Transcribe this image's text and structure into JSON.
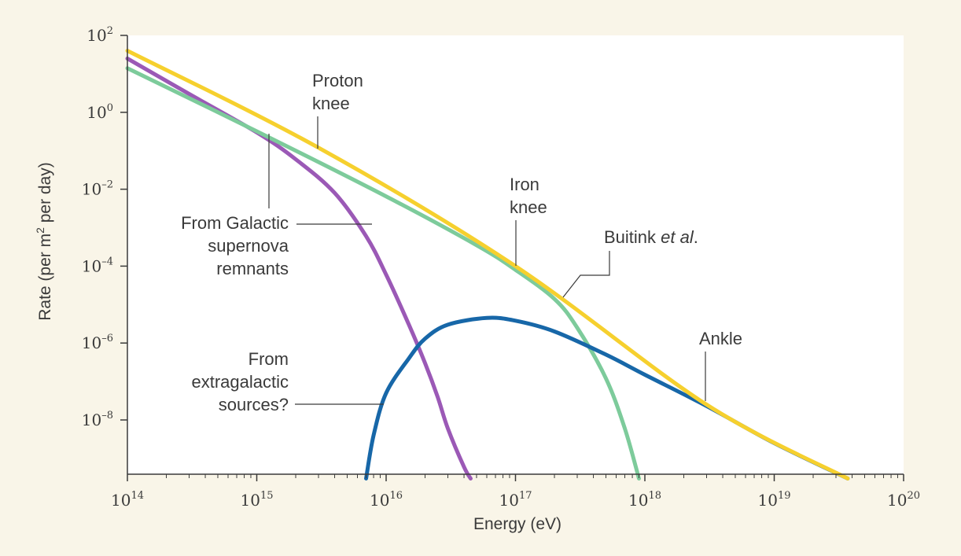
{
  "chart_data": {
    "type": "line",
    "xlabel": "Energy (eV)",
    "ylabel_parts": [
      "Rate (per m",
      "2",
      " per day)"
    ],
    "x_scale": "log",
    "y_scale": "log",
    "xlim": [
      100000000000000.0,
      1e+20
    ],
    "ylim": [
      3e-10,
      100
    ],
    "x_ticks": [
      {
        "value": 100000000000000.0,
        "base": "10",
        "exp": "14"
      },
      {
        "value": 1000000000000000.0,
        "base": "10",
        "exp": "15"
      },
      {
        "value": 1e+16,
        "base": "10",
        "exp": "16"
      },
      {
        "value": 1e+17,
        "base": "10",
        "exp": "17"
      },
      {
        "value": 1e+18,
        "base": "10",
        "exp": "18"
      },
      {
        "value": 1e+19,
        "base": "10",
        "exp": "19"
      },
      {
        "value": 1e+20,
        "base": "10",
        "exp": "20"
      }
    ],
    "y_ticks": [
      {
        "value": 100,
        "base": "10",
        "exp": "2"
      },
      {
        "value": 1,
        "base": "10",
        "exp": "0"
      },
      {
        "value": 0.01,
        "base": "10",
        "exp": "–2"
      },
      {
        "value": 0.0001,
        "base": "10",
        "exp": "–4"
      },
      {
        "value": 1e-06,
        "base": "10",
        "exp": "–6"
      },
      {
        "value": 1e-08,
        "base": "10",
        "exp": "–8"
      }
    ],
    "series": [
      {
        "key": "galactic",
        "color": "#9b59b6",
        "points": [
          [
            100000000000000.0,
            25
          ],
          [
            300000000000000.0,
            3
          ],
          [
            1000000000000000.0,
            0.3
          ],
          [
            2000000000000000.0,
            0.06
          ],
          [
            4000000000000000.0,
            0.008
          ],
          [
            7000000000000000.0,
            0.0006
          ],
          [
            1e+16,
            6e-05
          ],
          [
            1.5e+16,
            3e-06
          ],
          [
            2e+16,
            3e-07
          ],
          [
            2.5e+16,
            4e-08
          ],
          [
            3e+16,
            6e-09
          ],
          [
            4e+16,
            6e-10
          ],
          [
            4.5e+16,
            3e-10
          ]
        ]
      },
      {
        "key": "iron",
        "color": "#7dcb9b",
        "points": [
          [
            100000000000000.0,
            14
          ],
          [
            1000000000000000.0,
            0.32
          ],
          [
            1e+16,
            0.0065
          ],
          [
            5e+16,
            0.00035
          ],
          [
            1e+17,
            8e-05
          ],
          [
            2e+17,
            1.4e-05
          ],
          [
            3e+17,
            2.5e-06
          ],
          [
            5e+17,
            1.2e-07
          ],
          [
            7e+17,
            6e-09
          ],
          [
            9e+17,
            3e-10
          ]
        ]
      },
      {
        "key": "extragalactic",
        "color": "#1767a8",
        "points": [
          [
            7000000000000000.0,
            3e-10
          ],
          [
            8000000000000000.0,
            4e-09
          ],
          [
            1e+16,
            5e-08
          ],
          [
            1.5e+16,
            4e-07
          ],
          [
            2e+16,
            1.3e-06
          ],
          [
            3e+16,
            3e-06
          ],
          [
            6e+16,
            4.5e-06
          ],
          [
            1e+17,
            3.8e-06
          ],
          [
            2e+17,
            2e-06
          ],
          [
            5e+17,
            5e-07
          ],
          [
            1e+18,
            1.5e-07
          ],
          [
            3e+18,
            2.3e-08
          ],
          [
            1e+19,
            2.5e-09
          ],
          [
            3.7e+19,
            3e-10
          ]
        ]
      },
      {
        "key": "total",
        "color": "#f6d02e",
        "points": [
          [
            100000000000000.0,
            40
          ],
          [
            3000000000000000.0,
            0.12
          ],
          [
            1e+17,
            0.0001
          ],
          [
            3e+18,
            2.5e-08
          ],
          [
            3.7e+19,
            3e-10
          ]
        ]
      }
    ],
    "annotations": [
      {
        "key": "proton-knee",
        "lines": [
          "Proton",
          "knee"
        ]
      },
      {
        "key": "galactic-label",
        "lines": [
          "From Galactic",
          "supernova",
          "remnants"
        ]
      },
      {
        "key": "iron-knee",
        "lines": [
          "Iron",
          "knee"
        ]
      },
      {
        "key": "buitink",
        "lines": [
          "Buitink ",
          "et al",
          "."
        ]
      },
      {
        "key": "ankle",
        "lines": [
          "Ankle"
        ]
      },
      {
        "key": "extragalactic-label",
        "lines": [
          "From",
          "extragalactic",
          "sources?"
        ]
      }
    ]
  }
}
